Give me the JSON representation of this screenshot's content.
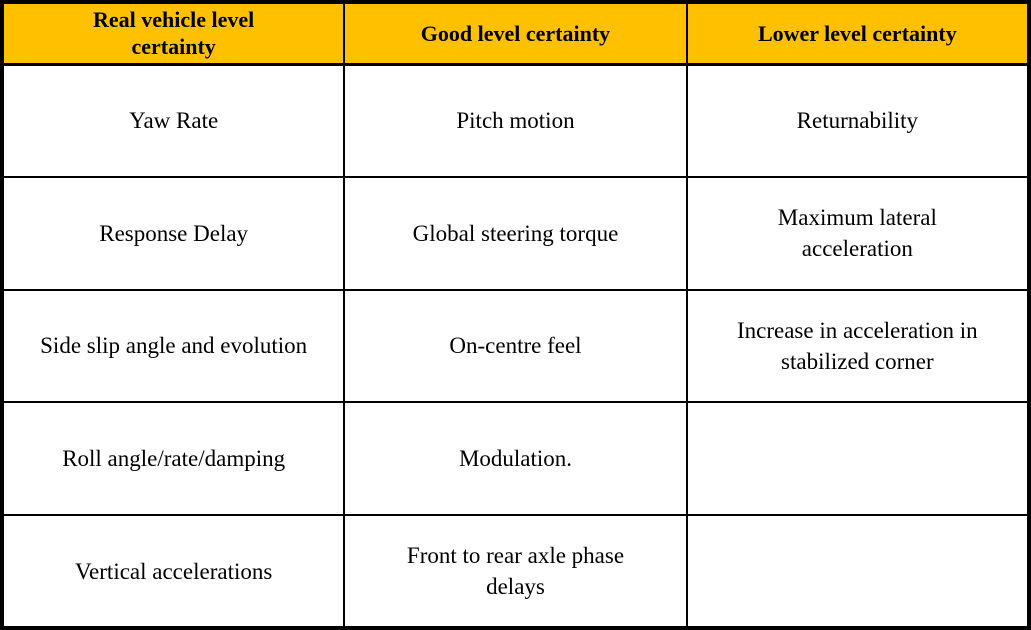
{
  "table": {
    "colors": {
      "header_bg": "#FFC000",
      "header_text": "#000000",
      "border": "#000000",
      "cell_bg": "#FFFFFF"
    },
    "headers": [
      "Real vehicle level certainty",
      "Good level certainty",
      "Lower level certainty"
    ],
    "rows": [
      [
        "Yaw Rate",
        "Pitch motion",
        "Returnability"
      ],
      [
        "Response Delay",
        "Global steering torque",
        "Maximum lateral acceleration"
      ],
      [
        "Side slip angle and evolution",
        "On-centre feel",
        "Increase in acceleration in stabilized corner"
      ],
      [
        "Roll angle/rate/damping",
        "Modulation.",
        ""
      ],
      [
        "Vertical accelerations",
        "Front to rear axle phase delays",
        ""
      ]
    ]
  }
}
